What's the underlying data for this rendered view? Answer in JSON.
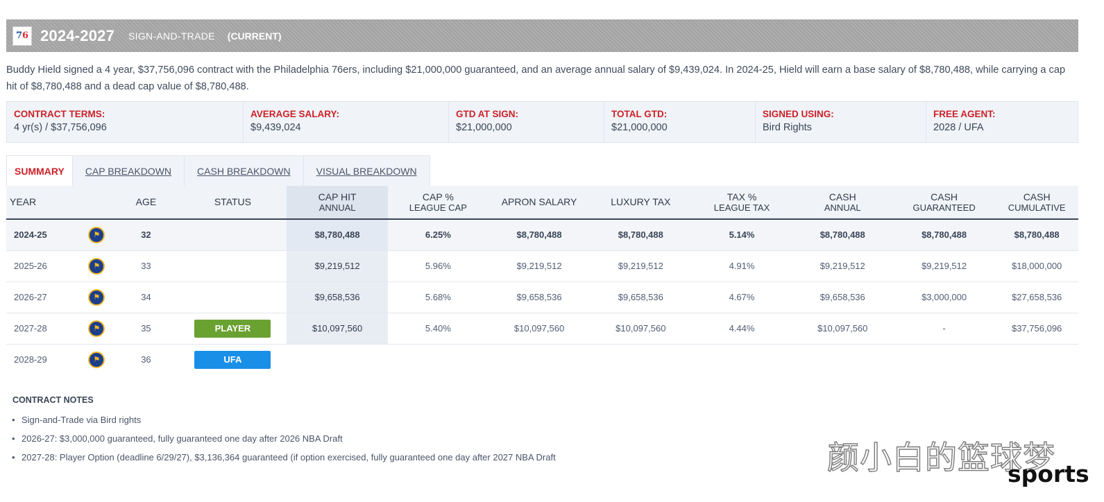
{
  "header": {
    "team_logo_top": "7",
    "team_logo_bottom": "6",
    "years": "2024-2027",
    "contract_type": "SIGN-AND-TRADE",
    "status": "(CURRENT)"
  },
  "summary": "Buddy Hield signed a 4 year, $37,756,096 contract with the Philadelphia 76ers, including $21,000,000 guaranteed, and an average annual salary of $9,439,024. In 2024-25, Hield will earn a base salary of $8,780,488, while carrying a cap hit of $8,780,488 and a dead cap value of $8,780,488.",
  "terms": [
    {
      "label": "CONTRACT TERMS:",
      "value": "4 yr(s) / $37,756,096"
    },
    {
      "label": "AVERAGE SALARY:",
      "value": "$9,439,024"
    },
    {
      "label": "GTD AT SIGN:",
      "value": "$21,000,000"
    },
    {
      "label": "TOTAL GTD:",
      "value": "$21,000,000"
    },
    {
      "label": "SIGNED USING:",
      "value": "Bird Rights"
    },
    {
      "label": "FREE AGENT:",
      "value": "2028 / UFA"
    }
  ],
  "tabs": [
    {
      "label": "SUMMARY",
      "active": true
    },
    {
      "label": "CAP BREAKDOWN",
      "active": false
    },
    {
      "label": "CASH BREAKDOWN",
      "active": false
    },
    {
      "label": "VISUAL BREAKDOWN",
      "active": false
    }
  ],
  "table": {
    "headers": {
      "year": "YEAR",
      "age": "AGE",
      "status": "STATUS",
      "cap_hit": "CAP HIT",
      "cap_hit_sub": "ANNUAL",
      "cap_pct": "CAP %",
      "cap_pct_sub": "LEAGUE CAP",
      "apron": "APRON SALARY",
      "luxury": "LUXURY TAX",
      "tax_pct": "TAX %",
      "tax_pct_sub": "LEAGUE TAX",
      "cash": "CASH",
      "cash_sub": "ANNUAL",
      "cash_gtd": "CASH",
      "cash_gtd_sub": "GUARANTEED",
      "cash_cum": "CASH",
      "cash_cum_sub": "CUMULATIVE"
    },
    "rows": [
      {
        "year": "2024-25",
        "age": "32",
        "status": "",
        "cap_hit": "$8,780,488",
        "cap_pct": "6.25%",
        "apron": "$8,780,488",
        "luxury": "$8,780,488",
        "tax_pct": "5.14%",
        "cash": "$8,780,488",
        "cash_gtd": "$8,780,488",
        "cash_cum": "$8,780,488"
      },
      {
        "year": "2025-26",
        "age": "33",
        "status": "",
        "cap_hit": "$9,219,512",
        "cap_pct": "5.96%",
        "apron": "$9,219,512",
        "luxury": "$9,219,512",
        "tax_pct": "4.91%",
        "cash": "$9,219,512",
        "cash_gtd": "$9,219,512",
        "cash_cum": "$18,000,000"
      },
      {
        "year": "2026-27",
        "age": "34",
        "status": "",
        "cap_hit": "$9,658,536",
        "cap_pct": "5.68%",
        "apron": "$9,658,536",
        "luxury": "$9,658,536",
        "tax_pct": "4.67%",
        "cash": "$9,658,536",
        "cash_gtd": "$3,000,000",
        "cash_cum": "$27,658,536"
      },
      {
        "year": "2027-28",
        "age": "35",
        "status": "PLAYER",
        "cap_hit": "$10,097,560",
        "cap_pct": "5.40%",
        "apron": "$10,097,560",
        "luxury": "$10,097,560",
        "tax_pct": "4.44%",
        "cash": "$10,097,560",
        "cash_gtd": "-",
        "cash_cum": "$37,756,096"
      },
      {
        "year": "2028-29",
        "age": "36",
        "status": "UFA",
        "cap_hit": "",
        "cap_pct": "",
        "apron": "",
        "luxury": "",
        "tax_pct": "",
        "cash": "",
        "cash_gtd": "",
        "cash_cum": ""
      }
    ],
    "team_icon": "warriors-logo-icon",
    "status_colors": {
      "PLAYER": "#6aa232",
      "UFA": "#1a8fe8"
    }
  },
  "notes": {
    "title": "CONTRACT NOTES",
    "items": [
      "Sign-and-Trade via Bird rights",
      "2026-27: $3,000,000 guaranteed, fully guaranteed one day after 2026 NBA Draft",
      "2027-28: Player Option (deadline 6/29/27), $3,136,364 guaranteed (if option exercised, fully guaranteed one day after 2027 NBA Draft"
    ]
  },
  "watermark": {
    "text": "颜小白的篮球梦",
    "sub": "sports"
  },
  "colors": {
    "accent_red": "#cc2027",
    "header_gray": "#a9a9a9",
    "panel_bg": "#f0f3f8"
  }
}
